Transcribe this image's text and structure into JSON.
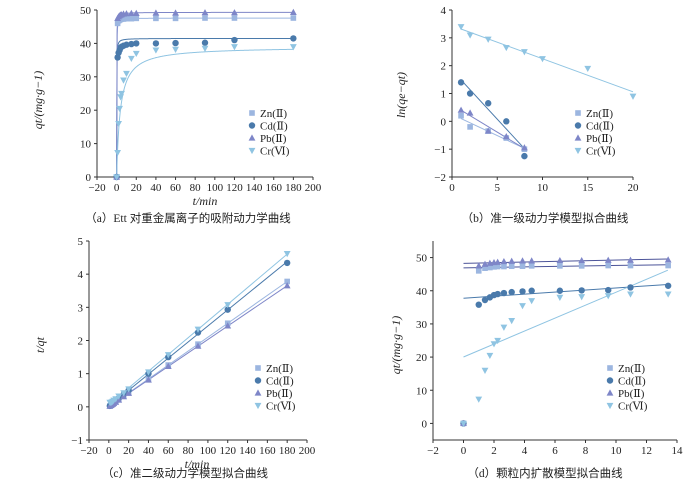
{
  "colors": {
    "Zn": "#9cb6e0",
    "Cd": "#4a7aab",
    "Pb": "#7e86c8",
    "Cr": "#8fc4e2",
    "line_dark": "#4c5499",
    "axis": "#333333"
  },
  "chart_data": [
    {
      "type": "scatter",
      "caption": "（a）Ett 对重金属离子的吸附动力学曲线",
      "xlabel": "t/min",
      "ylabel": "qt/(mg·g−1)",
      "xlim": [
        -20,
        200
      ],
      "ylim": [
        0,
        50
      ],
      "xticks": [
        "−20",
        "0",
        "20",
        "40",
        "60",
        "80",
        "100",
        "120",
        "140",
        "160",
        "180",
        "200"
      ],
      "yticks": [
        "0",
        "10",
        "20",
        "30",
        "40",
        "50"
      ],
      "legend_position": "bottom-right",
      "x": [
        0,
        1,
        2,
        3,
        4,
        5,
        7,
        10,
        15,
        20,
        40,
        60,
        90,
        120,
        180
      ],
      "series": [
        {
          "name": "Zn(Ⅱ)",
          "values": [
            0,
            46,
            46.8,
            47,
            47.2,
            47.3,
            47.3,
            47.4,
            47.4,
            47.5,
            47.5,
            47.5,
            47.6,
            47.6,
            47.6
          ]
        },
        {
          "name": "Cd(Ⅱ)",
          "values": [
            0,
            35.8,
            37.2,
            38,
            38.7,
            39,
            39.3,
            39.6,
            39.8,
            40,
            40,
            40.1,
            40.2,
            41,
            41.5
          ]
        },
        {
          "name": "Pb(Ⅱ)",
          "values": [
            0,
            47.5,
            48,
            48.3,
            48.5,
            48.6,
            48.8,
            48.9,
            49,
            49,
            49.1,
            49.1,
            49.2,
            49.2,
            49.3
          ]
        },
        {
          "name": "Cr(Ⅵ)",
          "values": [
            0,
            7.3,
            16,
            20.5,
            24,
            25,
            29,
            31,
            35.5,
            37,
            38,
            38.2,
            38.5,
            39,
            39
          ]
        }
      ]
    },
    {
      "type": "scatter",
      "caption": "（b）准一级动力学模型拟合曲线",
      "ylabel": "ln(qe−qt)",
      "xlim": [
        0,
        20
      ],
      "ylim": [
        -2,
        4
      ],
      "xticks": [
        "0",
        "5",
        "10",
        "15",
        "20"
      ],
      "yticks": [
        "−2",
        "−1",
        "0",
        "1",
        "2",
        "3",
        "4"
      ],
      "legend_position": "bottom-right",
      "series": [
        {
          "name": "Zn(Ⅱ)",
          "x": [
            1,
            2,
            4,
            6,
            8
          ],
          "values": [
            0.2,
            -0.2,
            -0.35,
            -0.6,
            -1.0
          ]
        },
        {
          "name": "Cd(Ⅱ)",
          "x": [
            1,
            2,
            4,
            6,
            8
          ],
          "values": [
            1.4,
            1.0,
            0.65,
            0,
            -1.25
          ]
        },
        {
          "name": "Pb(Ⅱ)",
          "x": [
            1,
            2,
            4,
            6,
            8
          ],
          "values": [
            0.4,
            0.3,
            -0.35,
            -0.55,
            -0.95
          ]
        },
        {
          "name": "Cr(Ⅵ)",
          "x": [
            1,
            2,
            4,
            6,
            8,
            10,
            15,
            20
          ],
          "values": [
            3.4,
            3.1,
            2.95,
            2.65,
            2.5,
            2.25,
            1.9,
            0.9
          ]
        }
      ]
    },
    {
      "type": "scatter",
      "caption": "（c）准二级动力学模型拟合曲线",
      "xlabel": "t/min",
      "ylabel": "t/qt",
      "xlim": [
        -20,
        200
      ],
      "ylim": [
        -1,
        5
      ],
      "xticks": [
        "−20",
        "0",
        "20",
        "40",
        "60",
        "80",
        "100",
        "120",
        "140",
        "160",
        "180",
        "200"
      ],
      "yticks": [
        "−1",
        "0",
        "1",
        "2",
        "3",
        "4",
        "5"
      ],
      "legend_position": "bottom-right",
      "x": [
        1,
        2,
        3,
        4,
        5,
        7,
        10,
        15,
        20,
        40,
        60,
        90,
        120,
        180
      ],
      "series": [
        {
          "name": "Zn(Ⅱ)",
          "values": [
            0.022,
            0.043,
            0.064,
            0.085,
            0.106,
            0.148,
            0.211,
            0.316,
            0.42,
            0.84,
            1.26,
            1.89,
            2.52,
            3.78
          ]
        },
        {
          "name": "Cd(Ⅱ)",
          "values": [
            0.028,
            0.054,
            0.079,
            0.103,
            0.128,
            0.178,
            0.253,
            0.377,
            0.5,
            1.0,
            1.5,
            2.24,
            2.93,
            4.34
          ]
        },
        {
          "name": "Pb(Ⅱ)",
          "values": [
            0.021,
            0.042,
            0.062,
            0.082,
            0.103,
            0.143,
            0.205,
            0.306,
            0.41,
            0.81,
            1.22,
            1.83,
            2.44,
            3.65
          ]
        },
        {
          "name": "Cr(Ⅵ)",
          "values": [
            0.137,
            0.125,
            0.146,
            0.167,
            0.2,
            0.241,
            0.323,
            0.42,
            0.54,
            1.05,
            1.57,
            2.34,
            3.08,
            4.62
          ]
        }
      ]
    },
    {
      "type": "scatter",
      "caption": "（d）颗粒内扩散模型拟合曲线",
      "ylabel": "qt/(mg·g−1)",
      "xlim": [
        -2,
        14
      ],
      "ylim": [
        -5,
        55
      ],
      "xticks": [
        "−2",
        "0",
        "2",
        "4",
        "6",
        "8",
        "10",
        "12",
        "14"
      ],
      "yticks": [
        "0",
        "10",
        "20",
        "30",
        "40",
        "50"
      ],
      "legend_position": "bottom-right",
      "x": [
        0,
        1,
        1.41,
        1.73,
        2,
        2.24,
        2.65,
        3.16,
        3.87,
        4.47,
        6.32,
        7.75,
        9.49,
        10.95,
        13.42
      ],
      "series": [
        {
          "name": "Zn(Ⅱ)",
          "values": [
            0,
            46,
            46.8,
            47,
            47.2,
            47.3,
            47.3,
            47.4,
            47.4,
            47.5,
            47.5,
            47.5,
            47.6,
            47.6,
            47.6
          ]
        },
        {
          "name": "Cd(Ⅱ)",
          "values": [
            0,
            35.8,
            37.2,
            38,
            38.7,
            39,
            39.3,
            39.6,
            39.8,
            40,
            40,
            40.1,
            40.2,
            41,
            41.5
          ]
        },
        {
          "name": "Pb(Ⅱ)",
          "values": [
            0,
            47.5,
            48,
            48.3,
            48.5,
            48.6,
            48.8,
            48.9,
            49,
            49,
            49.1,
            49.1,
            49.2,
            49.2,
            49.3
          ]
        },
        {
          "name": "Cr(Ⅵ)",
          "values": [
            0,
            7.3,
            16,
            20.5,
            24,
            25,
            29,
            31,
            35.5,
            37,
            38,
            38.2,
            38.5,
            39,
            39
          ]
        }
      ]
    }
  ]
}
